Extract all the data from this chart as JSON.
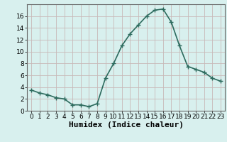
{
  "x": [
    0,
    1,
    2,
    3,
    4,
    5,
    6,
    7,
    8,
    9,
    10,
    11,
    12,
    13,
    14,
    15,
    16,
    17,
    18,
    19,
    20,
    21,
    22,
    23
  ],
  "y": [
    3.5,
    3.0,
    2.7,
    2.2,
    2.0,
    1.0,
    1.0,
    0.7,
    1.2,
    5.5,
    8.0,
    11.0,
    13.0,
    14.5,
    16.0,
    17.0,
    17.2,
    15.0,
    11.0,
    7.5,
    7.0,
    6.5,
    5.5,
    5.0
  ],
  "line_color": "#2d6b5e",
  "marker": "+",
  "marker_size": 4,
  "line_width": 1.2,
  "xlabel": "Humidex (Indice chaleur)",
  "xlim": [
    -0.5,
    23.5
  ],
  "ylim": [
    0,
    18
  ],
  "yticks": [
    0,
    2,
    4,
    6,
    8,
    10,
    12,
    14,
    16
  ],
  "xtick_labels": [
    "0",
    "1",
    "2",
    "3",
    "4",
    "5",
    "6",
    "7",
    "8",
    "9",
    "10",
    "11",
    "12",
    "13",
    "14",
    "15",
    "16",
    "17",
    "18",
    "19",
    "20",
    "21",
    "22",
    "23"
  ],
  "bg_color": "#d8f0ee",
  "grid_color_major": "#c8b8b8",
  "grid_color_minor": "#d8f0ee",
  "xlabel_fontsize": 8,
  "tick_fontsize": 6.5
}
